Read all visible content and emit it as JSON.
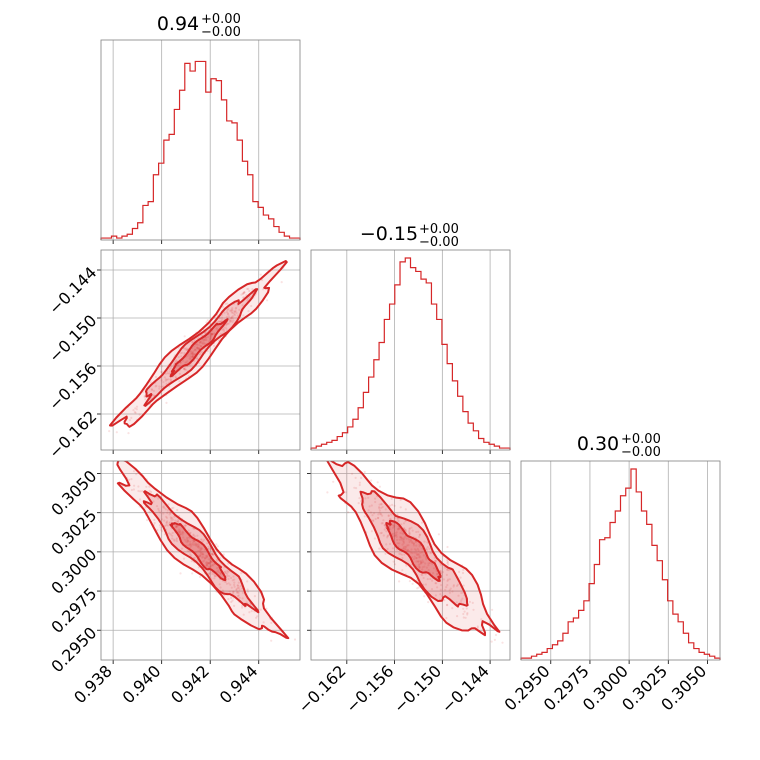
{
  "chart_data": {
    "type": "corner",
    "colors": {
      "accent": "#d62728",
      "grid": "#b0b0b0",
      "frame": "#808080"
    },
    "parameters": [
      {
        "title": "0.94",
        "err_plus": "+0.00",
        "err_minus": "−0.00",
        "range": [
          0.9375,
          0.9457
        ],
        "ticks": [
          0.938,
          0.94,
          0.942,
          0.944
        ],
        "tick_labels": [
          "0.938",
          "0.940",
          "0.942",
          "0.944"
        ],
        "mean": 0.9415,
        "sd": 0.0011
      },
      {
        "title": "−0.15",
        "err_plus": "+0.00",
        "err_minus": "−0.00",
        "range": [
          -0.1665,
          -0.1415
        ],
        "ticks": [
          -0.162,
          -0.156,
          -0.15,
          -0.144
        ],
        "tick_labels": [
          "−0.162",
          "−0.156",
          "−0.150",
          "−0.144"
        ],
        "mean": -0.1537,
        "sd": 0.0033
      },
      {
        "title": "0.30",
        "err_plus": "+0.00",
        "err_minus": "−0.00",
        "range": [
          0.2931,
          0.3058
        ],
        "ticks": [
          0.295,
          0.2975,
          0.3,
          0.3025,
          0.305
        ],
        "tick_labels": [
          "0.2950",
          "0.2975",
          "0.3000",
          "0.3025",
          "0.3050"
        ],
        "mean": 0.3001,
        "sd": 0.0018
      }
    ],
    "histograms": [
      {
        "param": 0,
        "relative_heights": [
          0.01,
          0.01,
          0.02,
          0.01,
          0.02,
          0.03,
          0.06,
          0.09,
          0.18,
          0.2,
          0.34,
          0.4,
          0.52,
          0.55,
          0.68,
          0.78,
          0.92,
          0.88,
          0.93,
          0.93,
          0.77,
          0.84,
          0.83,
          0.73,
          0.62,
          0.61,
          0.52,
          0.41,
          0.34,
          0.2,
          0.17,
          0.13,
          0.11,
          0.07,
          0.04,
          0.02,
          0.01,
          0.01
        ]
      },
      {
        "param": 1,
        "relative_heights": [
          0.01,
          0.02,
          0.03,
          0.04,
          0.05,
          0.07,
          0.09,
          0.12,
          0.16,
          0.22,
          0.3,
          0.38,
          0.47,
          0.56,
          0.68,
          0.76,
          0.86,
          0.98,
          1.0,
          0.95,
          0.93,
          0.89,
          0.87,
          0.76,
          0.68,
          0.55,
          0.45,
          0.36,
          0.28,
          0.2,
          0.14,
          0.1,
          0.06,
          0.04,
          0.03,
          0.02,
          0.01,
          0.01
        ]
      },
      {
        "param": 2,
        "relative_heights": [
          0.01,
          0.01,
          0.02,
          0.03,
          0.04,
          0.06,
          0.08,
          0.1,
          0.14,
          0.2,
          0.22,
          0.26,
          0.31,
          0.4,
          0.5,
          0.63,
          0.64,
          0.72,
          0.78,
          0.86,
          0.9,
          1.0,
          0.88,
          0.78,
          0.71,
          0.6,
          0.52,
          0.42,
          0.31,
          0.24,
          0.2,
          0.14,
          0.09,
          0.06,
          0.04,
          0.03,
          0.02,
          0.01
        ]
      }
    ],
    "pairs": [
      {
        "x_param": 0,
        "y_param": 1,
        "correlation": 0.97
      },
      {
        "x_param": 0,
        "y_param": 2,
        "correlation": -0.95
      },
      {
        "x_param": 1,
        "y_param": 2,
        "correlation": -0.9
      }
    ],
    "contour_levels_sigma": [
      1.0,
      2.0,
      3.0
    ],
    "contour_fill_opacity": [
      0.6,
      0.35,
      0.18
    ],
    "title": "",
    "xlabel": "",
    "ylabel": "",
    "grid": true,
    "legend": "none"
  }
}
